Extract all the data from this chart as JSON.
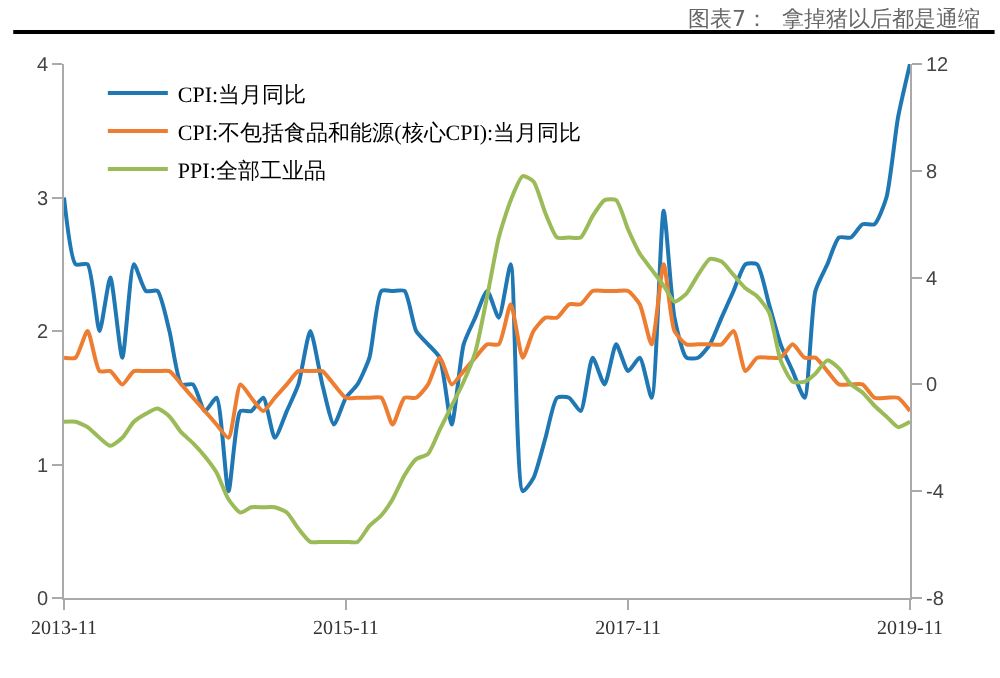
{
  "chart_data": {
    "type": "line",
    "title": "图表7：  拿掉猪以后都是通缩",
    "x": [
      "2013-11",
      "2013-12",
      "2014-01",
      "2014-02",
      "2014-03",
      "2014-04",
      "2014-05",
      "2014-06",
      "2014-07",
      "2014-08",
      "2014-09",
      "2014-10",
      "2014-11",
      "2014-12",
      "2015-01",
      "2015-02",
      "2015-03",
      "2015-04",
      "2015-05",
      "2015-06",
      "2015-07",
      "2015-08",
      "2015-09",
      "2015-10",
      "2015-11",
      "2015-12",
      "2016-01",
      "2016-02",
      "2016-03",
      "2016-04",
      "2016-05",
      "2016-06",
      "2016-07",
      "2016-08",
      "2016-09",
      "2016-10",
      "2016-11",
      "2016-12",
      "2017-01",
      "2017-02",
      "2017-03",
      "2017-04",
      "2017-05",
      "2017-06",
      "2017-07",
      "2017-08",
      "2017-09",
      "2017-10",
      "2017-11",
      "2017-12",
      "2018-01",
      "2018-02",
      "2018-03",
      "2018-04",
      "2018-05",
      "2018-06",
      "2018-07",
      "2018-08",
      "2018-09",
      "2018-10",
      "2018-11",
      "2018-12",
      "2019-01",
      "2019-02",
      "2019-03",
      "2019-04",
      "2019-05",
      "2019-06",
      "2019-07",
      "2019-08",
      "2019-09",
      "2019-10",
      "2019-11"
    ],
    "series": [
      {
        "name": "CPI:当月同比",
        "color": "#1f78b4",
        "values": [
          3.0,
          2.5,
          2.5,
          2.0,
          2.4,
          1.8,
          2.5,
          2.3,
          2.3,
          2.0,
          1.6,
          1.6,
          1.4,
          1.5,
          0.8,
          1.4,
          1.4,
          1.5,
          1.2,
          1.4,
          1.6,
          2.0,
          1.6,
          1.3,
          1.5,
          1.6,
          1.8,
          2.3,
          2.3,
          2.3,
          2.0,
          1.9,
          1.8,
          1.3,
          1.9,
          2.1,
          2.3,
          2.1,
          2.5,
          0.8,
          0.9,
          1.2,
          1.5,
          1.5,
          1.4,
          1.8,
          1.6,
          1.9,
          1.7,
          1.8,
          1.5,
          2.9,
          2.1,
          1.8,
          1.8,
          1.9,
          2.1,
          2.3,
          2.5,
          2.5,
          2.2,
          1.9,
          1.7,
          1.5,
          2.3,
          2.5,
          2.7,
          2.7,
          2.8,
          2.8,
          3.0,
          3.6,
          4.0
        ]
      },
      {
        "name": "CPI:不包括食品和能源(核心CPI):当月同比",
        "color": "#ed7d31",
        "values": [
          1.8,
          1.8,
          2.0,
          1.7,
          1.7,
          1.6,
          1.7,
          1.7,
          1.7,
          1.7,
          1.6,
          1.5,
          1.4,
          1.3,
          1.2,
          1.6,
          1.5,
          1.4,
          1.5,
          1.6,
          1.7,
          1.7,
          1.7,
          1.6,
          1.5,
          1.5,
          1.5,
          1.5,
          1.3,
          1.5,
          1.5,
          1.6,
          1.8,
          1.6,
          1.7,
          1.8,
          1.9,
          1.9,
          2.2,
          1.8,
          2.0,
          2.1,
          2.1,
          2.2,
          2.2,
          2.3,
          2.3,
          2.3,
          2.3,
          2.2,
          1.9,
          2.5,
          2.0,
          1.9,
          1.9,
          1.9,
          1.9,
          2.0,
          1.7,
          1.8,
          1.8,
          1.8,
          1.9,
          1.8,
          1.8,
          1.7,
          1.6,
          1.6,
          1.6,
          1.5,
          1.5,
          1.5,
          1.4
        ]
      },
      {
        "name": "PPI:全部工业品",
        "color": "#9bbb59",
        "axis": "y2",
        "values": [
          -1.4,
          -1.4,
          -1.6,
          -2.0,
          -2.3,
          -2.0,
          -1.4,
          -1.1,
          -0.9,
          -1.2,
          -1.8,
          -2.2,
          -2.7,
          -3.3,
          -4.3,
          -4.8,
          -4.6,
          -4.6,
          -4.6,
          -4.8,
          -5.4,
          -5.9,
          -5.9,
          -5.9,
          -5.9,
          -5.9,
          -5.3,
          -4.9,
          -4.3,
          -3.4,
          -2.8,
          -2.6,
          -1.7,
          -0.8,
          0.1,
          1.2,
          3.3,
          5.5,
          6.9,
          7.8,
          7.6,
          6.4,
          5.5,
          5.5,
          5.5,
          6.3,
          6.9,
          6.9,
          5.8,
          4.9,
          4.3,
          3.7,
          3.1,
          3.4,
          4.1,
          4.7,
          4.6,
          4.1,
          3.6,
          3.3,
          2.7,
          0.9,
          0.1,
          0.1,
          0.4,
          0.9,
          0.6,
          0.0,
          -0.3,
          -0.8,
          -1.2,
          -1.6,
          -1.4
        ]
      }
    ],
    "xlim": [
      "2013-11",
      "2019-11"
    ],
    "xticks": [
      "2013-11",
      "2015-11",
      "2017-11",
      "2019-11"
    ],
    "ylim": [
      0,
      4
    ],
    "yticks": [
      0,
      1,
      2,
      3,
      4
    ],
    "y2lim": [
      -8,
      12
    ],
    "y2ticks": [
      -8,
      -4,
      0,
      4,
      8,
      12
    ],
    "legend": "top left",
    "marker": "none",
    "line_style": "solid"
  }
}
